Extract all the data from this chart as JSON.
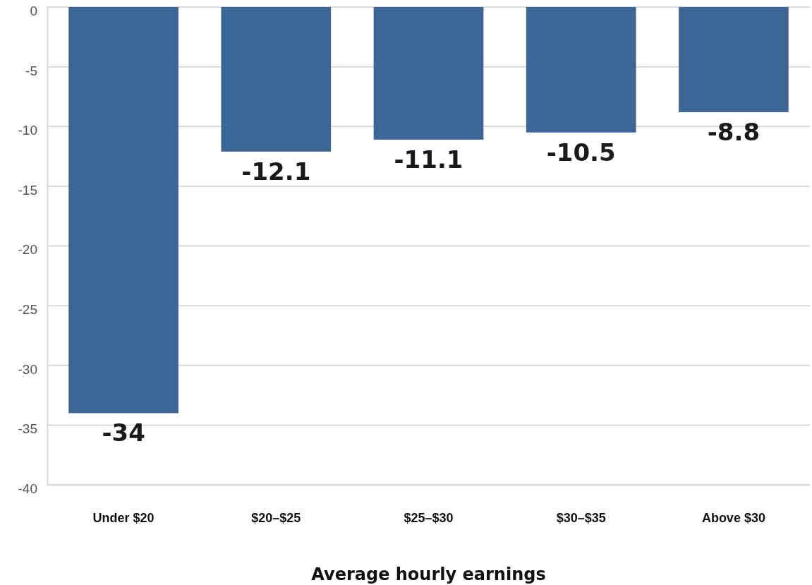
{
  "chart_data": {
    "type": "bar",
    "xlabel": "Average hourly earnings",
    "categories": [
      "Under $20",
      "$20–$25",
      "$25–$30",
      "$30–$35",
      "Above $30"
    ],
    "values": [
      -34,
      -12.1,
      -11.1,
      -10.5,
      -8.8
    ],
    "color": "#3b6696",
    "ylim": [
      -40,
      0
    ],
    "yticks": [
      -40,
      -35,
      -30,
      -25,
      -20,
      -15,
      -10,
      -5,
      0
    ],
    "grid": "y",
    "data_labels": true
  }
}
